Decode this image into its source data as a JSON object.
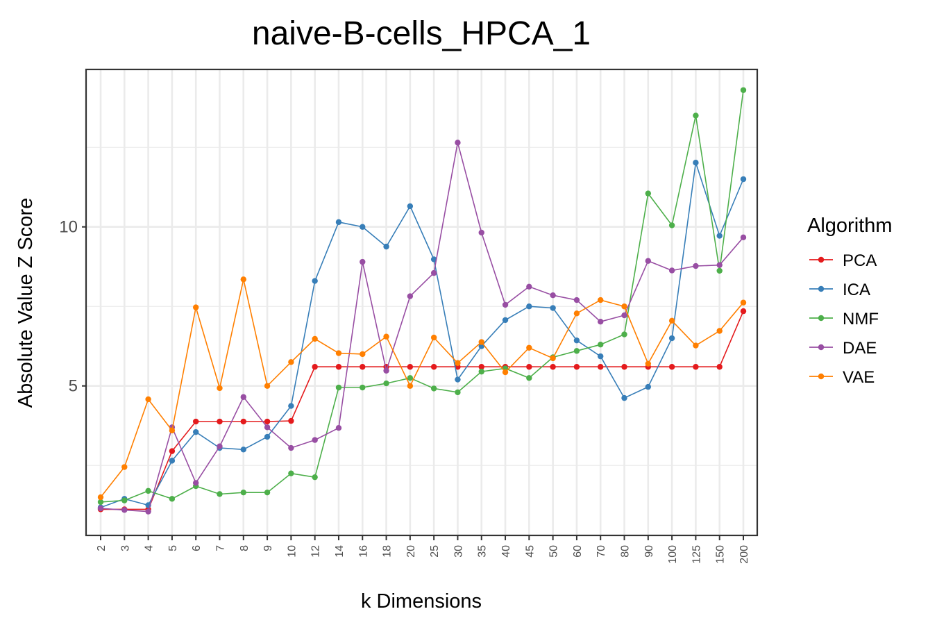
{
  "chart_data": {
    "type": "line",
    "title": "naive-B-cells_HPCA_1",
    "xlabel": "k Dimensions",
    "ylabel": "Absolute Value Z Score",
    "categories": [
      "2",
      "3",
      "4",
      "5",
      "6",
      "7",
      "8",
      "9",
      "10",
      "12",
      "14",
      "16",
      "18",
      "20",
      "25",
      "30",
      "35",
      "40",
      "45",
      "50",
      "60",
      "70",
      "80",
      "90",
      "100",
      "125",
      "150",
      "200"
    ],
    "ylim": [
      0.3,
      14.95
    ],
    "yticks": [
      5,
      10
    ],
    "yticks_minor": [
      2.5,
      7.5,
      12.5
    ],
    "grid": true,
    "legend": {
      "title": "Algorithm",
      "placement": "right"
    },
    "series": [
      {
        "name": "PCA",
        "color": "#e41a1c",
        "values": [
          1.12,
          1.12,
          1.12,
          2.95,
          3.88,
          3.88,
          3.88,
          3.88,
          3.9,
          5.6,
          5.6,
          5.6,
          5.6,
          5.6,
          5.6,
          5.6,
          5.6,
          5.6,
          5.6,
          5.6,
          5.6,
          5.6,
          5.6,
          5.6,
          5.6,
          5.6,
          5.6,
          7.35
        ]
      },
      {
        "name": "ICA",
        "color": "#377eb8",
        "values": [
          1.18,
          1.45,
          1.25,
          2.65,
          3.55,
          3.05,
          3.0,
          3.4,
          4.37,
          8.3,
          10.15,
          10.0,
          9.38,
          10.65,
          8.98,
          5.2,
          6.25,
          7.07,
          7.5,
          7.45,
          6.43,
          5.93,
          4.62,
          4.97,
          6.5,
          12.02,
          9.72,
          11.5
        ]
      },
      {
        "name": "NMF",
        "color": "#4daf4a",
        "values": [
          1.35,
          1.4,
          1.7,
          1.45,
          1.85,
          1.6,
          1.65,
          1.65,
          2.25,
          2.13,
          4.95,
          4.95,
          5.08,
          5.25,
          4.92,
          4.8,
          5.45,
          5.55,
          5.25,
          5.9,
          6.1,
          6.3,
          6.62,
          11.05,
          10.05,
          13.5,
          8.62,
          14.3
        ]
      },
      {
        "name": "DAE",
        "color": "#984ea3",
        "values": [
          1.15,
          1.1,
          1.05,
          3.7,
          1.95,
          3.1,
          4.65,
          3.7,
          3.05,
          3.3,
          3.68,
          8.9,
          5.48,
          7.82,
          8.55,
          12.65,
          9.82,
          7.55,
          8.12,
          7.85,
          7.7,
          7.02,
          7.22,
          8.93,
          8.63,
          8.77,
          8.8,
          9.67
        ]
      },
      {
        "name": "VAE",
        "color": "#ff7f00",
        "values": [
          1.5,
          2.45,
          4.58,
          3.6,
          7.47,
          4.93,
          8.35,
          5.0,
          5.75,
          6.48,
          6.03,
          6.0,
          6.55,
          5.0,
          6.52,
          5.72,
          6.38,
          5.43,
          6.2,
          5.87,
          7.28,
          7.7,
          7.5,
          5.7,
          7.05,
          6.27,
          6.73,
          7.62
        ]
      }
    ]
  }
}
